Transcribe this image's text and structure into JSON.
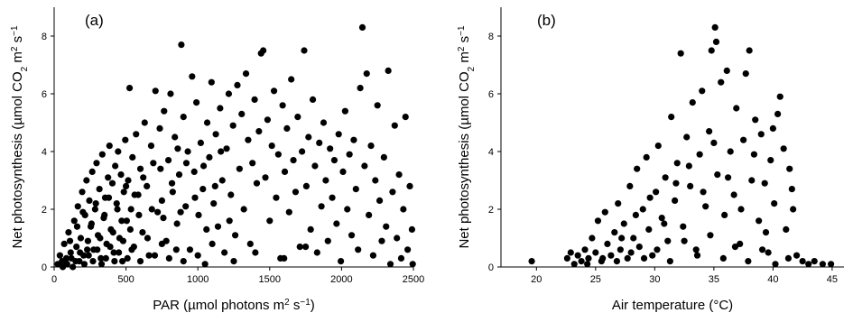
{
  "chart_data": [
    {
      "type": "scatter",
      "panel_label": "(a)",
      "xlabel_prefix": "PAR (µmol photons m",
      "xlabel_sup": "2",
      "xlabel_mid": " s",
      "xlabel_sup2": "−1",
      "xlabel_suffix": ")",
      "ylabel_prefix": "Net photosynthesis (µmol CO",
      "ylabel_sub": "2",
      "ylabel_mid": " m",
      "ylabel_sup": "2",
      "ylabel_mid2": " s",
      "ylabel_sup2": "−1",
      "xlim": [
        0,
        2500
      ],
      "ylim": [
        0,
        9
      ],
      "xticks": [
        0,
        500,
        1000,
        1500,
        2000,
        2500
      ],
      "yticks": [
        0,
        2,
        4,
        6,
        8
      ],
      "grid": false,
      "marker_color": "#000000",
      "points": [
        [
          25,
          0.1
        ],
        [
          40,
          0.4
        ],
        [
          55,
          0.2
        ],
        [
          70,
          0.8
        ],
        [
          85,
          0.3
        ],
        [
          100,
          1.2
        ],
        [
          115,
          0.5
        ],
        [
          130,
          0.0
        ],
        [
          140,
          1.6
        ],
        [
          155,
          0.7
        ],
        [
          165,
          2.1
        ],
        [
          175,
          0.2
        ],
        [
          185,
          1.0
        ],
        [
          195,
          2.6
        ],
        [
          205,
          0.4
        ],
        [
          215,
          1.8
        ],
        [
          225,
          3.0
        ],
        [
          235,
          0.9
        ],
        [
          245,
          2.3
        ],
        [
          255,
          1.4
        ],
        [
          265,
          3.3
        ],
        [
          275,
          0.6
        ],
        [
          285,
          2.0
        ],
        [
          295,
          3.6
        ],
        [
          305,
          1.1
        ],
        [
          315,
          2.7
        ],
        [
          325,
          0.3
        ],
        [
          335,
          3.9
        ],
        [
          345,
          1.7
        ],
        [
          355,
          2.4
        ],
        [
          365,
          0.8
        ],
        [
          375,
          3.1
        ],
        [
          385,
          4.2
        ],
        [
          395,
          1.3
        ],
        [
          405,
          2.9
        ],
        [
          415,
          0.5
        ],
        [
          425,
          3.5
        ],
        [
          435,
          2.2
        ],
        [
          445,
          4.0
        ],
        [
          455,
          1.0
        ],
        [
          465,
          3.2
        ],
        [
          475,
          0.2
        ],
        [
          485,
          2.6
        ],
        [
          495,
          4.4
        ],
        [
          505,
          1.6
        ],
        [
          515,
          3.0
        ],
        [
          525,
          6.2
        ],
        [
          535,
          2.0
        ],
        [
          545,
          3.8
        ],
        [
          555,
          0.7
        ],
        [
          570,
          4.6
        ],
        [
          585,
          2.5
        ],
        [
          600,
          3.4
        ],
        [
          615,
          1.2
        ],
        [
          630,
          5.0
        ],
        [
          645,
          2.8
        ],
        [
          660,
          0.4
        ],
        [
          675,
          4.2
        ],
        [
          690,
          3.6
        ],
        [
          705,
          6.1
        ],
        [
          720,
          1.9
        ],
        [
          735,
          4.8
        ],
        [
          750,
          2.3
        ],
        [
          765,
          5.4
        ],
        [
          780,
          0.9
        ],
        [
          795,
          3.7
        ],
        [
          810,
          6.0
        ],
        [
          825,
          2.6
        ],
        [
          840,
          4.5
        ],
        [
          855,
          1.5
        ],
        [
          870,
          3.2
        ],
        [
          885,
          7.7
        ],
        [
          900,
          5.2
        ],
        [
          915,
          2.1
        ],
        [
          930,
          4.0
        ],
        [
          945,
          0.6
        ],
        [
          960,
          6.6
        ],
        [
          975,
          3.3
        ],
        [
          990,
          5.7
        ],
        [
          1005,
          1.8
        ],
        [
          1020,
          4.3
        ],
        [
          1035,
          2.7
        ],
        [
          1050,
          0.1
        ],
        [
          1065,
          5.0
        ],
        [
          1080,
          3.8
        ],
        [
          1095,
          6.4
        ],
        [
          1110,
          2.2
        ],
        [
          1125,
          4.6
        ],
        [
          1140,
          1.4
        ],
        [
          1155,
          5.5
        ],
        [
          1170,
          3.0
        ],
        [
          1185,
          0.5
        ],
        [
          1200,
          4.1
        ],
        [
          1215,
          6.0
        ],
        [
          1230,
          2.5
        ],
        [
          1245,
          4.9
        ],
        [
          1260,
          1.1
        ],
        [
          1275,
          6.3
        ],
        [
          1290,
          3.4
        ],
        [
          1305,
          5.3
        ],
        [
          1320,
          2.0
        ],
        [
          1335,
          6.7
        ],
        [
          1350,
          4.4
        ],
        [
          1365,
          0.8
        ],
        [
          1380,
          3.6
        ],
        [
          1395,
          5.8
        ],
        [
          1410,
          2.9
        ],
        [
          1425,
          4.7
        ],
        [
          1440,
          7.4
        ],
        [
          1455,
          7.5
        ],
        [
          1470,
          3.1
        ],
        [
          1485,
          5.1
        ],
        [
          1500,
          1.6
        ],
        [
          1515,
          4.2
        ],
        [
          1530,
          6.1
        ],
        [
          1545,
          2.4
        ],
        [
          1560,
          3.9
        ],
        [
          1575,
          0.3
        ],
        [
          1590,
          5.6
        ],
        [
          1605,
          3.3
        ],
        [
          1620,
          4.8
        ],
        [
          1635,
          1.9
        ],
        [
          1650,
          6.5
        ],
        [
          1665,
          3.7
        ],
        [
          1680,
          2.6
        ],
        [
          1695,
          5.2
        ],
        [
          1710,
          0.7
        ],
        [
          1725,
          4.0
        ],
        [
          1740,
          7.5
        ],
        [
          1755,
          2.8
        ],
        [
          1770,
          4.5
        ],
        [
          1785,
          1.3
        ],
        [
          1800,
          5.8
        ],
        [
          1815,
          3.5
        ],
        [
          1830,
          0.5
        ],
        [
          1845,
          4.3
        ],
        [
          1860,
          2.1
        ],
        [
          1875,
          5.0
        ],
        [
          1890,
          3.0
        ],
        [
          1905,
          0.9
        ],
        [
          1920,
          4.1
        ],
        [
          1935,
          2.4
        ],
        [
          1950,
          3.7
        ],
        [
          1965,
          1.5
        ],
        [
          1980,
          4.6
        ],
        [
          1995,
          0.2
        ],
        [
          2010,
          3.3
        ],
        [
          2025,
          5.4
        ],
        [
          2040,
          2.0
        ],
        [
          2055,
          3.9
        ],
        [
          2070,
          1.1
        ],
        [
          2085,
          4.4
        ],
        [
          2100,
          2.7
        ],
        [
          2115,
          0.6
        ],
        [
          2130,
          6.2
        ],
        [
          2145,
          8.3
        ],
        [
          2160,
          3.5
        ],
        [
          2175,
          6.7
        ],
        [
          2190,
          1.8
        ],
        [
          2205,
          4.2
        ],
        [
          2220,
          0.4
        ],
        [
          2235,
          3.0
        ],
        [
          2250,
          5.6
        ],
        [
          2265,
          2.3
        ],
        [
          2280,
          0.9
        ],
        [
          2295,
          3.8
        ],
        [
          2310,
          1.4
        ],
        [
          2325,
          6.8
        ],
        [
          2340,
          0.1
        ],
        [
          2355,
          2.6
        ],
        [
          2370,
          4.9
        ],
        [
          2385,
          1.0
        ],
        [
          2400,
          3.2
        ],
        [
          2415,
          0.3
        ],
        [
          2430,
          2.0
        ],
        [
          2445,
          5.2
        ],
        [
          2460,
          0.6
        ],
        [
          2475,
          2.8
        ],
        [
          2490,
          1.3
        ],
        [
          2495,
          0.1
        ],
        [
          60,
          0.0
        ],
        [
          90,
          0.1
        ],
        [
          120,
          0.3
        ],
        [
          150,
          0.2
        ],
        [
          180,
          0.5
        ],
        [
          210,
          0.1
        ],
        [
          240,
          0.4
        ],
        [
          270,
          0.2
        ],
        [
          300,
          0.6
        ],
        [
          330,
          0.1
        ],
        [
          360,
          0.3
        ],
        [
          390,
          0.7
        ],
        [
          420,
          0.2
        ],
        [
          450,
          0.5
        ],
        [
          480,
          0.9
        ],
        [
          510,
          0.3
        ],
        [
          540,
          0.6
        ],
        [
          600,
          0.2
        ],
        [
          650,
          1.0
        ],
        [
          700,
          0.4
        ],
        [
          750,
          0.8
        ],
        [
          800,
          0.3
        ],
        [
          850,
          0.6
        ],
        [
          900,
          0.2
        ],
        [
          1000,
          0.4
        ],
        [
          1100,
          0.8
        ],
        [
          1250,
          0.2
        ],
        [
          1400,
          0.5
        ],
        [
          1600,
          0.3
        ],
        [
          1750,
          0.7
        ],
        [
          110,
          0.9
        ],
        [
          160,
          1.4
        ],
        [
          200,
          1.9
        ],
        [
          230,
          0.6
        ],
        [
          260,
          1.5
        ],
        [
          290,
          2.2
        ],
        [
          320,
          1.0
        ],
        [
          350,
          1.8
        ],
        [
          380,
          2.4
        ],
        [
          410,
          1.2
        ],
        [
          440,
          2.0
        ],
        [
          470,
          1.6
        ],
        [
          500,
          2.8
        ],
        [
          530,
          1.3
        ],
        [
          560,
          2.5
        ],
        [
          590,
          1.8
        ],
        [
          620,
          3.1
        ],
        [
          680,
          2.0
        ],
        [
          740,
          3.4
        ],
        [
          760,
          1.7
        ],
        [
          820,
          2.9
        ],
        [
          860,
          4.1
        ],
        [
          880,
          1.9
        ],
        [
          920,
          3.6
        ],
        [
          980,
          2.4
        ],
        [
          1040,
          3.5
        ],
        [
          1060,
          1.3
        ],
        [
          1120,
          2.8
        ],
        [
          1160,
          4.0
        ],
        [
          1220,
          1.6
        ]
      ]
    },
    {
      "type": "scatter",
      "panel_label": "(b)",
      "xlabel_prefix": "Air temperature (°C)",
      "ylabel_prefix": "Net photosynthesis (µmol CO",
      "ylabel_sub": "2",
      "ylabel_mid": " m",
      "ylabel_sup": "2",
      "ylabel_mid2": " s",
      "ylabel_sup2": "−1",
      "xlim": [
        17,
        46
      ],
      "ylim": [
        0,
        9
      ],
      "xticks": [
        20,
        25,
        30,
        35,
        40,
        45
      ],
      "yticks": [
        0,
        2,
        4,
        6,
        8
      ],
      "grid": false,
      "marker_color": "#000000",
      "points": [
        [
          19.6,
          0.2
        ],
        [
          22.6,
          0.3
        ],
        [
          22.9,
          0.5
        ],
        [
          23.2,
          0.1
        ],
        [
          23.5,
          0.4
        ],
        [
          23.8,
          0.2
        ],
        [
          24.1,
          0.6
        ],
        [
          24.4,
          0.3
        ],
        [
          24.7,
          1.0
        ],
        [
          25.0,
          0.5
        ],
        [
          25.2,
          1.6
        ],
        [
          25.5,
          0.2
        ],
        [
          25.8,
          1.9
        ],
        [
          26.0,
          0.8
        ],
        [
          26.3,
          0.4
        ],
        [
          26.6,
          1.2
        ],
        [
          26.9,
          2.2
        ],
        [
          27.1,
          0.6
        ],
        [
          27.4,
          1.5
        ],
        [
          27.7,
          0.3
        ],
        [
          27.9,
          2.8
        ],
        [
          28.2,
          1.0
        ],
        [
          28.5,
          3.4
        ],
        [
          28.7,
          0.7
        ],
        [
          29.0,
          2.0
        ],
        [
          29.3,
          3.8
        ],
        [
          29.5,
          1.3
        ],
        [
          29.8,
          0.4
        ],
        [
          30.1,
          2.6
        ],
        [
          30.3,
          4.2
        ],
        [
          30.6,
          1.7
        ],
        [
          30.9,
          3.1
        ],
        [
          31.1,
          0.9
        ],
        [
          31.4,
          5.2
        ],
        [
          31.7,
          2.3
        ],
        [
          31.9,
          3.6
        ],
        [
          32.2,
          7.4
        ],
        [
          32.4,
          1.4
        ],
        [
          32.7,
          4.5
        ],
        [
          33.0,
          2.8
        ],
        [
          33.2,
          5.7
        ],
        [
          33.5,
          0.6
        ],
        [
          33.8,
          3.9
        ],
        [
          34.0,
          6.1
        ],
        [
          34.3,
          2.1
        ],
        [
          34.6,
          4.7
        ],
        [
          34.8,
          7.5
        ],
        [
          35.1,
          8.3
        ],
        [
          35.3,
          3.2
        ],
        [
          35.6,
          6.4
        ],
        [
          35.9,
          1.8
        ],
        [
          36.1,
          6.8
        ],
        [
          36.4,
          4.0
        ],
        [
          36.7,
          2.5
        ],
        [
          36.9,
          5.5
        ],
        [
          37.2,
          0.8
        ],
        [
          37.5,
          4.4
        ],
        [
          37.7,
          6.7
        ],
        [
          38.0,
          7.5
        ],
        [
          38.2,
          3.0
        ],
        [
          38.5,
          5.1
        ],
        [
          38.8,
          1.6
        ],
        [
          39.0,
          4.6
        ],
        [
          39.3,
          2.9
        ],
        [
          39.6,
          0.5
        ],
        [
          39.8,
          3.7
        ],
        [
          40.1,
          2.2
        ],
        [
          40.4,
          5.3
        ],
        [
          40.6,
          5.9
        ],
        [
          40.9,
          4.1
        ],
        [
          41.1,
          1.3
        ],
        [
          41.4,
          3.4
        ],
        [
          41.7,
          2.0
        ],
        [
          42.0,
          0.4
        ],
        [
          42.5,
          0.2
        ],
        [
          43.0,
          0.1
        ],
        [
          43.5,
          0.2
        ],
        [
          44.2,
          0.1
        ],
        [
          44.9,
          0.1
        ],
        [
          35.2,
          7.8
        ],
        [
          24.3,
          0.1
        ],
        [
          25.6,
          0.3
        ],
        [
          26.8,
          0.2
        ],
        [
          28.0,
          0.5
        ],
        [
          29.1,
          0.3
        ],
        [
          30.2,
          0.6
        ],
        [
          31.3,
          0.2
        ],
        [
          32.5,
          0.9
        ],
        [
          33.6,
          0.4
        ],
        [
          34.7,
          1.1
        ],
        [
          35.8,
          0.3
        ],
        [
          36.8,
          0.7
        ],
        [
          37.9,
          0.2
        ],
        [
          39.1,
          0.6
        ],
        [
          40.2,
          0.1
        ],
        [
          41.3,
          0.3
        ],
        [
          27.2,
          1.0
        ],
        [
          28.4,
          1.8
        ],
        [
          29.6,
          2.4
        ],
        [
          30.8,
          1.5
        ],
        [
          31.8,
          2.9
        ],
        [
          32.9,
          3.5
        ],
        [
          34.1,
          2.6
        ],
        [
          35.0,
          4.3
        ],
        [
          36.2,
          3.1
        ],
        [
          37.3,
          2.0
        ],
        [
          38.4,
          3.9
        ],
        [
          39.4,
          1.2
        ],
        [
          40.0,
          4.8
        ],
        [
          41.6,
          2.7
        ]
      ]
    }
  ]
}
